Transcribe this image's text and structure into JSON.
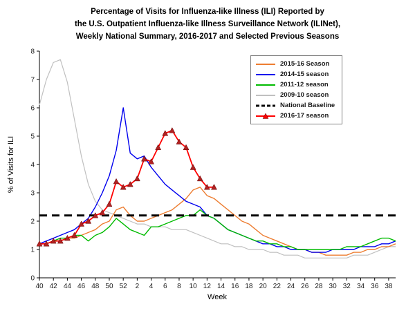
{
  "chart_data": {
    "type": "line",
    "title_lines": [
      "Percentage of Visits for Influenza-like Illness (ILI) Reported by",
      "the U.S. Outpatient Influenza-like Illness Surveillance Network (ILINet),",
      "Weekly National Summary, 2016-2017 and Selected Previous Seasons"
    ],
    "xlabel": "Week",
    "ylabel": "% of Visits for ILI",
    "ylim": [
      0,
      8
    ],
    "yticks": [
      0,
      1,
      2,
      3,
      4,
      5,
      6,
      7,
      8
    ],
    "grid": false,
    "legend_position": "top-right",
    "weeks": [
      40,
      41,
      42,
      43,
      44,
      45,
      46,
      47,
      48,
      49,
      50,
      51,
      52,
      1,
      2,
      3,
      4,
      5,
      6,
      7,
      8,
      9,
      10,
      11,
      12,
      13,
      14,
      15,
      16,
      17,
      18,
      19,
      20,
      21,
      22,
      23,
      24,
      25,
      26,
      27,
      28,
      29,
      30,
      31,
      32,
      33,
      34,
      35,
      36,
      37,
      38,
      39
    ],
    "series": [
      {
        "name": "2015-16 Season",
        "color": "#ED7D31",
        "z": 2,
        "line_width": 1.4,
        "values": [
          1.2,
          1.2,
          1.3,
          1.3,
          1.4,
          1.4,
          1.5,
          1.6,
          1.7,
          1.9,
          2.0,
          2.4,
          2.5,
          2.2,
          2.0,
          2.0,
          2.1,
          2.2,
          2.3,
          2.4,
          2.6,
          2.8,
          3.1,
          3.2,
          2.9,
          2.8,
          2.6,
          2.4,
          2.2,
          2.0,
          1.9,
          1.7,
          1.5,
          1.4,
          1.3,
          1.2,
          1.1,
          1.0,
          1.0,
          0.9,
          0.9,
          0.8,
          0.8,
          0.8,
          0.8,
          0.9,
          0.9,
          1.0,
          1.0,
          1.1,
          1.1,
          1.2
        ]
      },
      {
        "name": "2014-15 season",
        "color": "#0000EE",
        "z": 3,
        "line_width": 1.4,
        "values": [
          1.2,
          1.3,
          1.4,
          1.5,
          1.6,
          1.7,
          1.9,
          2.1,
          2.5,
          3.0,
          3.6,
          4.5,
          6.0,
          4.4,
          4.2,
          4.3,
          3.9,
          3.6,
          3.3,
          3.1,
          2.9,
          2.7,
          2.6,
          2.5,
          2.2,
          2.1,
          1.9,
          1.7,
          1.6,
          1.5,
          1.4,
          1.3,
          1.2,
          1.2,
          1.1,
          1.1,
          1.0,
          1.0,
          1.0,
          0.9,
          0.9,
          0.9,
          1.0,
          1.0,
          1.0,
          1.0,
          1.1,
          1.1,
          1.1,
          1.2,
          1.2,
          1.3
        ]
      },
      {
        "name": "2011-12 season",
        "color": "#00BB00",
        "z": 4,
        "line_width": 1.4,
        "values": [
          1.2,
          1.2,
          1.3,
          1.4,
          1.4,
          1.5,
          1.5,
          1.3,
          1.5,
          1.6,
          1.8,
          2.1,
          1.9,
          1.7,
          1.6,
          1.5,
          1.8,
          1.8,
          1.9,
          2.0,
          2.1,
          2.2,
          2.2,
          2.4,
          2.2,
          2.1,
          1.9,
          1.7,
          1.6,
          1.5,
          1.4,
          1.3,
          1.3,
          1.2,
          1.2,
          1.1,
          1.1,
          1.0,
          1.0,
          1.0,
          1.0,
          1.0,
          1.0,
          1.0,
          1.1,
          1.1,
          1.1,
          1.2,
          1.3,
          1.4,
          1.4,
          1.3
        ]
      },
      {
        "name": "2009-10 season",
        "color": "#C0C0C0",
        "z": 1,
        "line_width": 1.2,
        "values": [
          6.1,
          7.0,
          7.6,
          7.7,
          6.9,
          5.6,
          4.3,
          3.3,
          2.7,
          2.4,
          2.3,
          2.2,
          2.1,
          2.0,
          1.9,
          1.9,
          1.8,
          1.8,
          1.8,
          1.7,
          1.7,
          1.7,
          1.6,
          1.5,
          1.4,
          1.3,
          1.2,
          1.2,
          1.1,
          1.1,
          1.0,
          1.0,
          1.0,
          0.9,
          0.9,
          0.8,
          0.8,
          0.8,
          0.7,
          0.7,
          0.7,
          0.7,
          0.7,
          0.7,
          0.7,
          0.8,
          0.8,
          0.8,
          0.9,
          1.0,
          1.1,
          1.1
        ]
      },
      {
        "name": "2016-17 season",
        "color": "#FF0000",
        "z": 6,
        "line_width": 1.8,
        "marker": "triangle",
        "marker_color": "#B22222",
        "values": [
          1.2,
          1.2,
          1.3,
          1.3,
          1.4,
          1.5,
          1.9,
          2.0,
          2.2,
          2.3,
          2.6,
          3.4,
          3.2,
          3.3,
          3.5,
          4.2,
          4.1,
          4.6,
          5.1,
          5.2,
          4.8,
          4.6,
          3.9,
          3.5,
          3.2,
          3.2
        ]
      }
    ],
    "baseline": {
      "label": "National Baseline",
      "value": 2.2,
      "color": "#000000",
      "style": "dashed",
      "z": 5
    },
    "legend_order": [
      "series.0",
      "series.1",
      "series.2",
      "series.3",
      "baseline",
      "series.4"
    ]
  }
}
